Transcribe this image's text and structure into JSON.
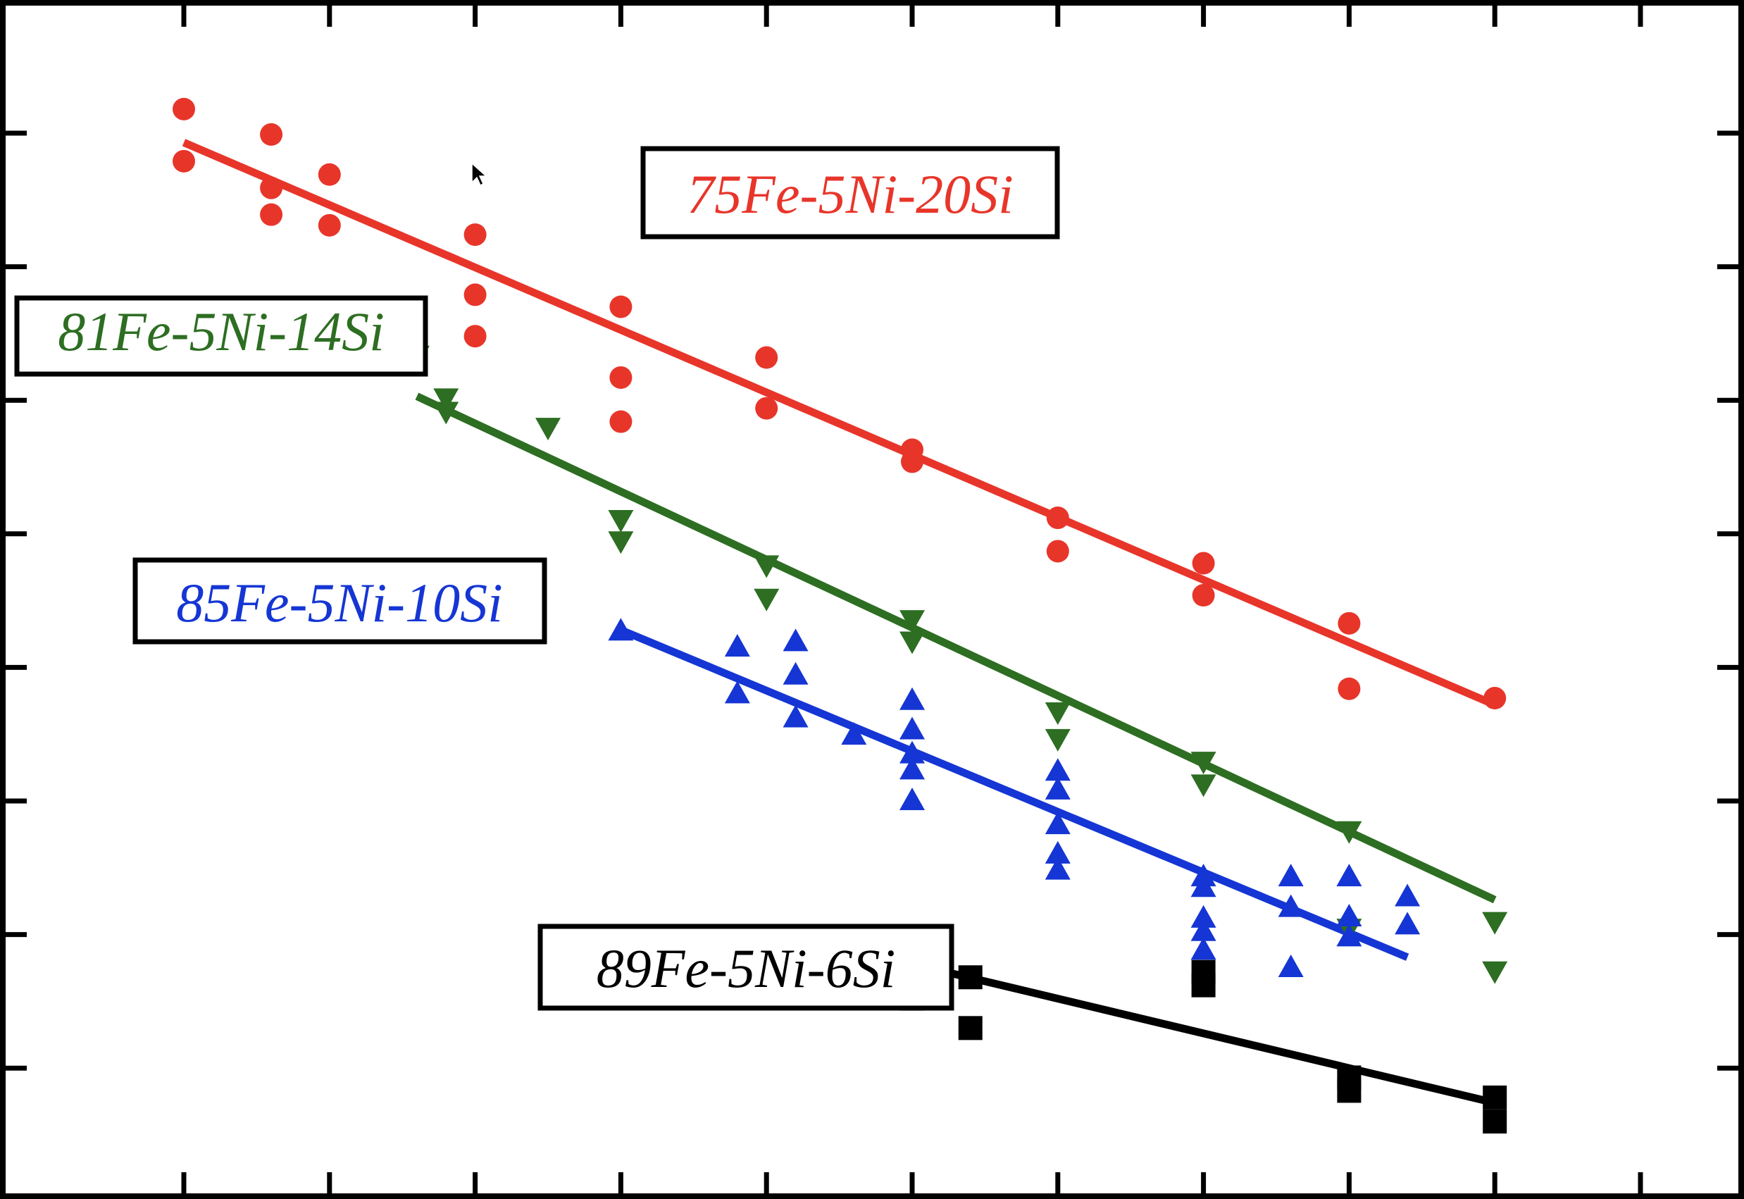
{
  "chart_data": {
    "type": "scatter",
    "title": "",
    "xlabel": "",
    "ylabel": "",
    "xlim": [
      0,
      12
    ],
    "ylim": [
      0,
      9
    ],
    "grid": false,
    "x_ticks": [
      1,
      2,
      3,
      4,
      5,
      6,
      7,
      8,
      9,
      10,
      11
    ],
    "y_ticks": [
      1,
      2,
      3,
      4,
      5,
      6,
      7,
      8
    ],
    "series": [
      {
        "name": "75Fe-5Ni-20Si",
        "color": "#e8352a",
        "marker": "circle",
        "points": [
          [
            1.0,
            8.18
          ],
          [
            1.0,
            7.79
          ],
          [
            1.6,
            7.99
          ],
          [
            1.6,
            7.59
          ],
          [
            1.6,
            7.39
          ],
          [
            2.0,
            7.69
          ],
          [
            2.0,
            7.31
          ],
          [
            3.0,
            7.24
          ],
          [
            3.0,
            6.79
          ],
          [
            3.0,
            6.48
          ],
          [
            4.0,
            6.7
          ],
          [
            4.0,
            6.17
          ],
          [
            4.0,
            5.84
          ],
          [
            5.0,
            6.32
          ],
          [
            5.0,
            5.94
          ],
          [
            6.0,
            5.63
          ],
          [
            6.0,
            5.54
          ],
          [
            7.0,
            5.12
          ],
          [
            7.0,
            4.87
          ],
          [
            8.0,
            4.78
          ],
          [
            8.0,
            4.54
          ],
          [
            9.0,
            4.33
          ],
          [
            9.0,
            3.84
          ],
          [
            10.0,
            3.77
          ]
        ],
        "fit": [
          [
            1.0,
            7.93
          ],
          [
            10.0,
            3.72
          ]
        ]
      },
      {
        "name": "81Fe-5Ni-14Si",
        "color": "#2d6e22",
        "marker": "triangle-down",
        "points": [
          [
            2.6,
            6.34
          ],
          [
            2.8,
            6.02
          ],
          [
            2.8,
            5.92
          ],
          [
            3.5,
            5.8
          ],
          [
            4.0,
            5.11
          ],
          [
            4.0,
            4.95
          ],
          [
            5.0,
            4.77
          ],
          [
            5.0,
            4.52
          ],
          [
            6.0,
            4.36
          ],
          [
            6.0,
            4.2
          ],
          [
            7.0,
            3.67
          ],
          [
            7.0,
            3.47
          ],
          [
            8.0,
            3.3
          ],
          [
            8.0,
            3.13
          ],
          [
            9.0,
            2.78
          ],
          [
            9.0,
            2.05
          ],
          [
            10.0,
            2.1
          ],
          [
            10.0,
            1.73
          ]
        ],
        "fit": [
          [
            2.6,
            6.03
          ],
          [
            10.0,
            2.26
          ]
        ]
      },
      {
        "name": "85Fe-5Ni-10Si",
        "color": "#1536d4",
        "marker": "triangle-up",
        "points": [
          [
            4.0,
            4.27
          ],
          [
            4.8,
            4.15
          ],
          [
            4.8,
            3.8
          ],
          [
            5.2,
            4.19
          ],
          [
            5.2,
            3.94
          ],
          [
            5.2,
            3.62
          ],
          [
            5.6,
            3.49
          ],
          [
            6.0,
            3.75
          ],
          [
            6.0,
            3.53
          ],
          [
            6.0,
            3.35
          ],
          [
            6.0,
            3.23
          ],
          [
            6.0,
            3.0
          ],
          [
            7.0,
            3.22
          ],
          [
            7.0,
            3.08
          ],
          [
            7.0,
            2.82
          ],
          [
            7.0,
            2.6
          ],
          [
            7.0,
            2.48
          ],
          [
            8.0,
            2.43
          ],
          [
            8.0,
            2.35
          ],
          [
            8.0,
            2.12
          ],
          [
            8.0,
            2.02
          ],
          [
            8.0,
            1.88
          ],
          [
            8.6,
            2.43
          ],
          [
            8.6,
            2.2
          ],
          [
            8.6,
            1.75
          ],
          [
            9.0,
            2.43
          ],
          [
            9.0,
            2.13
          ],
          [
            9.0,
            1.98
          ],
          [
            9.4,
            2.28
          ],
          [
            9.4,
            2.07
          ]
        ],
        "fit": [
          [
            4.0,
            4.28
          ],
          [
            9.4,
            1.83
          ]
        ]
      },
      {
        "name": "89Fe-5Ni-6Si",
        "color": "#000000",
        "marker": "square",
        "points": [
          [
            6.0,
            1.75
          ],
          [
            6.0,
            1.52
          ],
          [
            6.4,
            1.68
          ],
          [
            6.4,
            1.3
          ],
          [
            8.0,
            1.72
          ],
          [
            8.0,
            1.62
          ],
          [
            9.0,
            0.93
          ],
          [
            9.0,
            0.83
          ],
          [
            10.0,
            0.78
          ],
          [
            10.0,
            0.6
          ]
        ],
        "fit": [
          [
            6.0,
            1.78
          ],
          [
            10.0,
            0.74
          ]
        ]
      }
    ]
  }
}
